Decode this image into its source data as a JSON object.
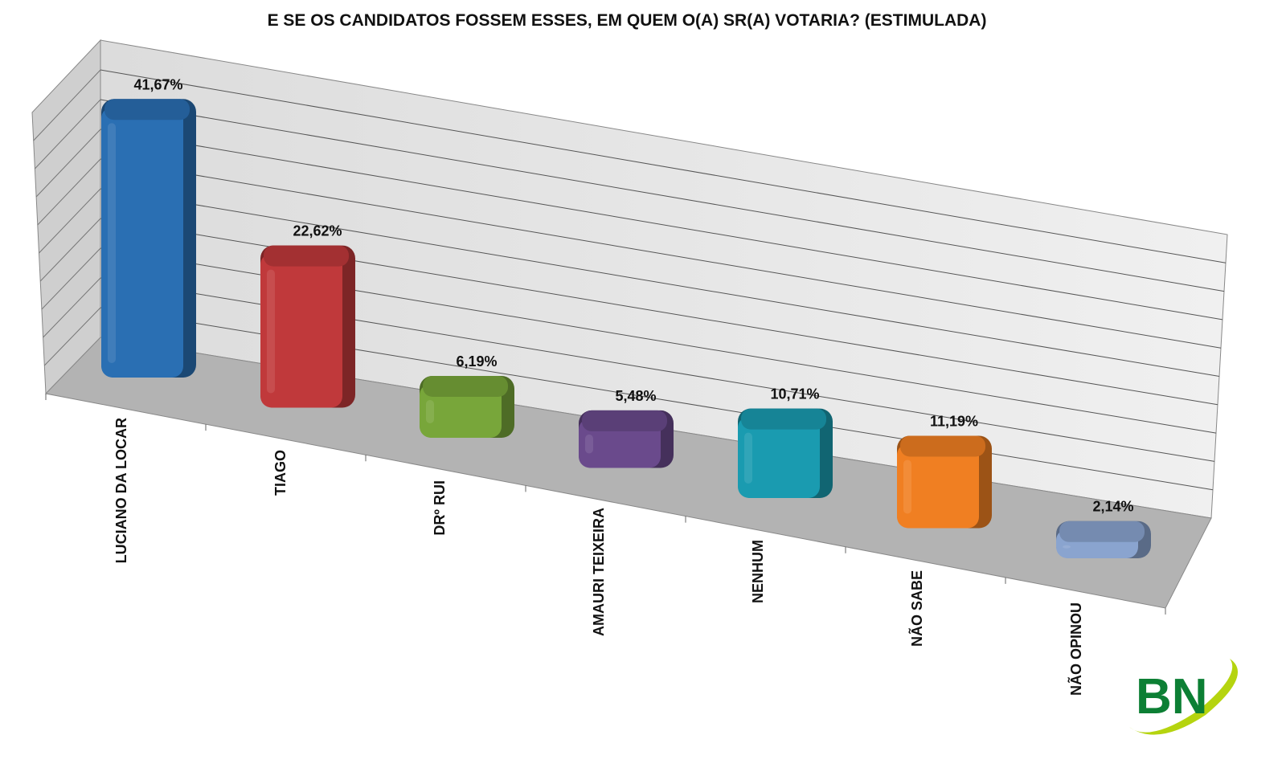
{
  "chart_data": {
    "type": "bar",
    "title": "E SE OS CANDIDATOS FOSSEM ESSES, EM QUEM O(A) SR(A) VOTARIA? (ESTIMULADA)",
    "categories": [
      "LUCIANO DA LOCAR",
      "TIAGO",
      "DRº RUI",
      "AMAURI TEIXEIRA",
      "NENHUM",
      "NÃO SABE",
      "NÃO OPINOU"
    ],
    "values": [
      41.67,
      22.62,
      6.19,
      5.48,
      10.71,
      11.19,
      2.14
    ],
    "value_labels": [
      "41,67%",
      "22,62%",
      "6,19%",
      "5,48%",
      "10,71%",
      "11,19%",
      "2,14%"
    ],
    "colors": [
      "#2a6fb3",
      "#c0393b",
      "#78a63a",
      "#6a4a8c",
      "#1a9bb0",
      "#f07f22",
      "#8aa4cf"
    ],
    "xlabel": "",
    "ylabel": "",
    "ylim": [
      0,
      45
    ],
    "grid": true,
    "legend": "none",
    "style": "3d"
  },
  "logo": {
    "text": "BN"
  }
}
